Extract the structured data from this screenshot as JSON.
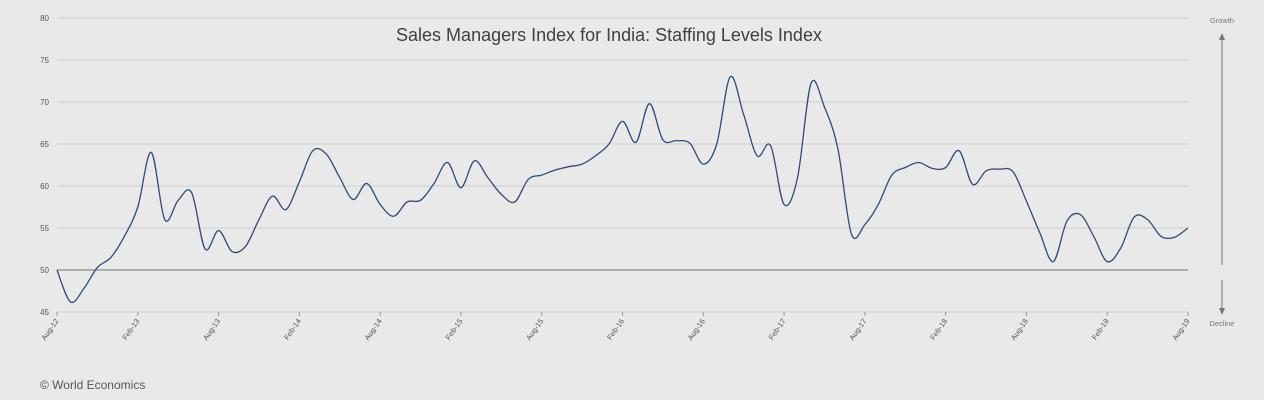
{
  "chart_data": {
    "type": "line",
    "title": "Sales Managers Index for India: Staffing Levels Index",
    "xlabel": "",
    "ylabel": "",
    "ylim": [
      45,
      80
    ],
    "yticks": [
      45,
      50,
      55,
      60,
      65,
      70,
      75,
      80
    ],
    "xticks": [
      "Aug-12",
      "Feb-13",
      "Aug-13",
      "Feb-14",
      "Aug-14",
      "Feb-15",
      "Aug-15",
      "Feb-16",
      "Aug-16",
      "Feb-17",
      "Aug-17",
      "Feb-18",
      "Aug-18",
      "Feb-19",
      "Aug-19"
    ],
    "reference_line": 50,
    "grid": true,
    "line_color": "#2e4a7a",
    "series": [
      {
        "x": [
          "Aug-12",
          "Sep-12",
          "Oct-12",
          "Nov-12",
          "Dec-12",
          "Jan-13",
          "Feb-13",
          "Mar-13",
          "Apr-13",
          "May-13",
          "Jun-13",
          "Jul-13",
          "Aug-13",
          "Sep-13",
          "Oct-13",
          "Nov-13",
          "Dec-13",
          "Jan-14",
          "Feb-14",
          "Mar-14",
          "Apr-14",
          "May-14",
          "Jun-14",
          "Jul-14",
          "Aug-14",
          "Sep-14",
          "Oct-14",
          "Nov-14",
          "Dec-14",
          "Jan-15",
          "Feb-15",
          "Mar-15",
          "Apr-15",
          "May-15",
          "Jun-15",
          "Jul-15",
          "Aug-15",
          "Sep-15",
          "Oct-15",
          "Nov-15",
          "Dec-15",
          "Jan-16",
          "Feb-16",
          "Mar-16",
          "Apr-16",
          "May-16",
          "Jun-16",
          "Jul-16",
          "Aug-16",
          "Sep-16",
          "Oct-16",
          "Nov-16",
          "Dec-16",
          "Jan-17",
          "Feb-17",
          "Mar-17",
          "Apr-17",
          "May-17",
          "Jun-17",
          "Jul-17",
          "Aug-17",
          "Sep-17",
          "Oct-17",
          "Nov-17",
          "Dec-17",
          "Jan-18",
          "Feb-18",
          "Mar-18",
          "Apr-18",
          "May-18",
          "Jun-18",
          "Jul-18",
          "Aug-18",
          "Sep-18",
          "Oct-18",
          "Nov-18",
          "Dec-18",
          "Jan-19",
          "Feb-19",
          "Mar-19",
          "Apr-19",
          "May-19",
          "Jun-19",
          "Jul-19",
          "Aug-19"
        ],
        "values": [
          50.0,
          46.2,
          47.8,
          50.3,
          51.5,
          54.0,
          57.5,
          64.0,
          56.0,
          58.3,
          59.2,
          52.5,
          54.7,
          52.2,
          52.8,
          56.0,
          58.8,
          57.2,
          60.5,
          64.2,
          63.8,
          61.0,
          58.4,
          60.3,
          57.8,
          56.4,
          58.1,
          58.3,
          60.3,
          62.8,
          59.8,
          63.0,
          61.0,
          59.0,
          58.1,
          60.8,
          61.3,
          61.9,
          62.3,
          62.6,
          63.6,
          65.0,
          67.7,
          65.2,
          69.8,
          65.5,
          65.4,
          65.1,
          62.6,
          65.0,
          73.0,
          68.5,
          63.6,
          64.8,
          57.8,
          61.0,
          72.2,
          69.4,
          64.4,
          54.3,
          55.4,
          57.8,
          61.3,
          62.2,
          62.8,
          62.1,
          62.2,
          64.2,
          60.2,
          61.8,
          62.0,
          61.7,
          58.2,
          54.4,
          51.0,
          55.8,
          56.6,
          54.0,
          51.0,
          52.6,
          56.3,
          56.0,
          54.0,
          53.9,
          55.0
        ]
      }
    ],
    "right_axis": {
      "top_label": "Growth",
      "bottom_label": "Decline"
    }
  },
  "footer": {
    "copyright": "© World Economics"
  }
}
